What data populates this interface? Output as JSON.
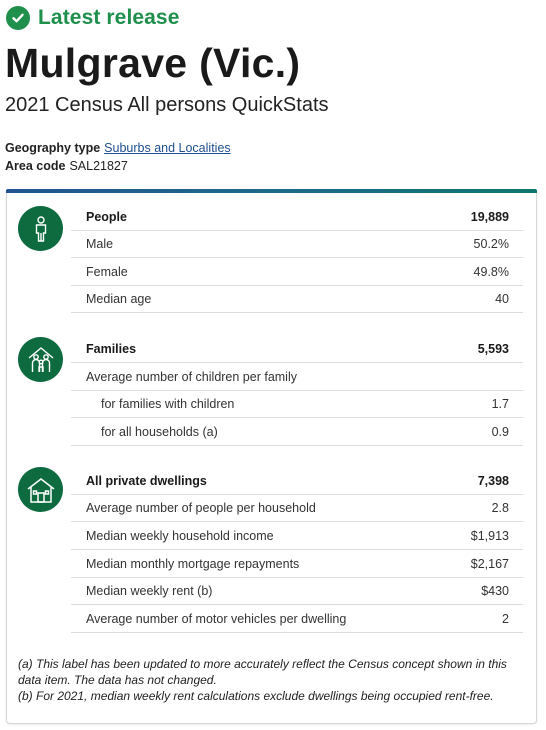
{
  "release": {
    "label": "Latest release",
    "icon": "check-circle-icon",
    "color": "#1f8f4c"
  },
  "page": {
    "title": "Mulgrave (Vic.)",
    "subtitle": "2021 Census All persons QuickStats"
  },
  "meta": {
    "geography_type_label": "Geography type",
    "geography_type_value": "Suburbs and Localities",
    "area_code_label": "Area code",
    "area_code_value": "SAL21827"
  },
  "sections": {
    "people": {
      "icon": "person-icon",
      "rows": [
        {
          "label": "People",
          "value": "19,889"
        },
        {
          "label": "Male",
          "value": "50.2%"
        },
        {
          "label": "Female",
          "value": "49.8%"
        },
        {
          "label": "Median age",
          "value": "40"
        }
      ]
    },
    "families": {
      "icon": "family-icon",
      "rows": [
        {
          "label": "Families",
          "value": "5,593"
        },
        {
          "label": "Average number of children per family",
          "value": ""
        },
        {
          "label": "for families with children",
          "value": "1.7"
        },
        {
          "label": "for all households (a)",
          "value": "0.9"
        }
      ]
    },
    "dwellings": {
      "icon": "house-icon",
      "rows": [
        {
          "label": "All private dwellings",
          "value": "7,398"
        },
        {
          "label": "Average number of people per household",
          "value": "2.8"
        },
        {
          "label": "Median weekly household income",
          "value": "$1,913"
        },
        {
          "label": "Median monthly mortgage repayments",
          "value": "$2,167"
        },
        {
          "label": "Median weekly rent (b)",
          "value": "$430"
        },
        {
          "label": "Average number of motor vehicles per dwelling",
          "value": "2"
        }
      ]
    }
  },
  "notes": {
    "a": "(a) This label has been updated to more accurately reflect the Census concept shown in this data item. The data has not changed.",
    "b": "(b) For 2021, median weekly rent calculations exclude dwellings being occupied rent-free."
  },
  "colors": {
    "accent_green": "#0d6b3f",
    "link": "#1f4f8f"
  }
}
